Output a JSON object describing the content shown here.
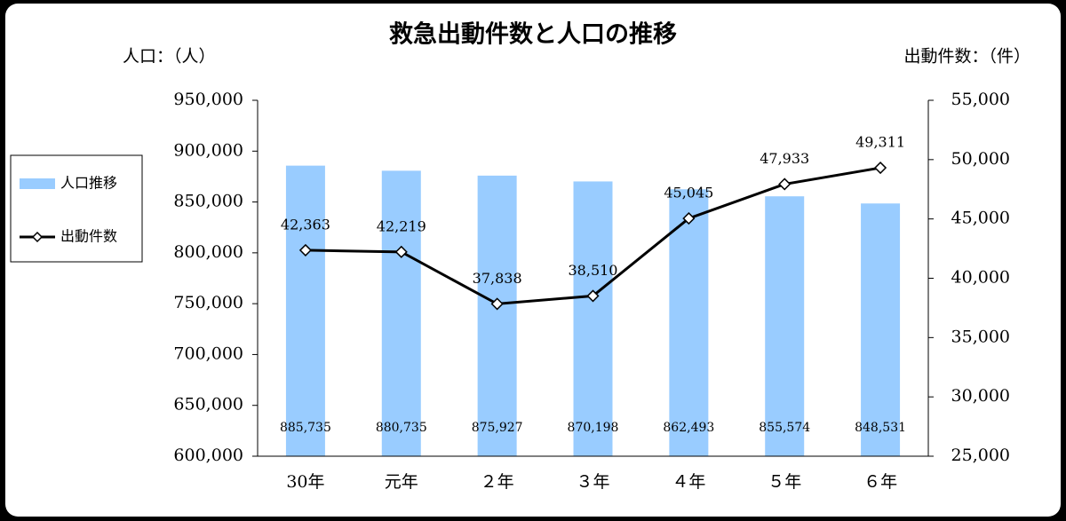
{
  "chart_data": {
    "type": "bar",
    "title": "救急出動件数と人口の推移",
    "y_label": "人口：（人）",
    "y2_label": "出動件数：（件）",
    "categories": [
      "30年",
      "元年",
      "２年",
      "３年",
      "４年",
      "５年",
      "６年"
    ],
    "series": [
      {
        "name": "人口推移",
        "type": "bar",
        "color": "#99ccff",
        "values": [
          885735,
          880735,
          875927,
          870198,
          862493,
          855574,
          848531
        ],
        "value_labels": [
          "885,735",
          "880,735",
          "875,927",
          "870,198",
          "862,493",
          "855,574",
          "848,531"
        ]
      },
      {
        "name": "出動件数",
        "type": "line",
        "axis": "y2",
        "color": "#000000",
        "values": [
          42363,
          42219,
          37838,
          38510,
          45045,
          47933,
          49311
        ],
        "value_labels": [
          "42,363",
          "42,219",
          "37,838",
          "38,510",
          "45,045",
          "47,933",
          "49,311"
        ]
      }
    ],
    "ylim": [
      600000,
      950000
    ],
    "yticks": [
      {
        "value": 600000,
        "label": "600,000"
      },
      {
        "value": 650000,
        "label": "650,000"
      },
      {
        "value": 700000,
        "label": "700,000"
      },
      {
        "value": 750000,
        "label": "750,000"
      },
      {
        "value": 800000,
        "label": "800,000"
      },
      {
        "value": 850000,
        "label": "850,000"
      },
      {
        "value": 900000,
        "label": "900,000"
      },
      {
        "value": 950000,
        "label": "950,000"
      }
    ],
    "y2lim": [
      25000,
      55000
    ],
    "y2ticks": [
      {
        "value": 25000,
        "label": "25,000"
      },
      {
        "value": 30000,
        "label": "30,000"
      },
      {
        "value": 35000,
        "label": "35,000"
      },
      {
        "value": 40000,
        "label": "40,000"
      },
      {
        "value": 45000,
        "label": "45,000"
      },
      {
        "value": 50000,
        "label": "50,000"
      },
      {
        "value": 55000,
        "label": "55,000"
      }
    ],
    "grid": false,
    "legend": "left"
  }
}
